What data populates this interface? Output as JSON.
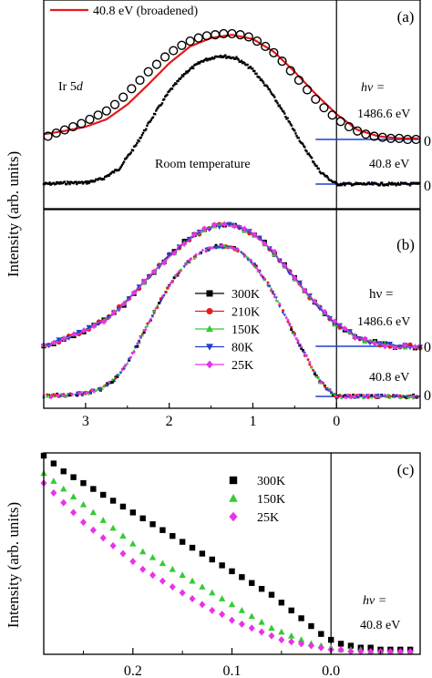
{
  "figure": {
    "ylabel": "Intensity (arb. units)"
  },
  "chart_data": [
    {
      "panel": "(a)",
      "type": "line",
      "x_axis": {
        "label": "",
        "xlim": [
          3.5,
          -1.0
        ],
        "reversed": true
      },
      "legend": {
        "entries": [
          "40.8 eV (broadened)"
        ],
        "placement": "top-left"
      },
      "annotations": {
        "element": "Ir 5d",
        "condition": "Room temperature",
        "photon_label": "hν =",
        "hv_high": "1486.6 eV",
        "hv_low": "40.8 eV",
        "baseline_high_label": "0",
        "baseline_low_label": "0"
      },
      "series": [
        {
          "name": "40.8 eV (broadened)",
          "style": "line",
          "color": "#e41a1c",
          "x": [
            3.5,
            3.25,
            3.0,
            2.75,
            2.5,
            2.25,
            2.0,
            1.75,
            1.5,
            1.25,
            1.0,
            0.75,
            0.5,
            0.25,
            0.0,
            -0.25,
            -0.5,
            -0.75,
            -1.0
          ],
          "y": [
            0.05,
            0.08,
            0.12,
            0.19,
            0.33,
            0.52,
            0.72,
            0.88,
            0.96,
            0.99,
            0.95,
            0.83,
            0.64,
            0.43,
            0.24,
            0.09,
            0.03,
            0.01,
            0.01
          ]
        },
        {
          "name": "1486.6 eV",
          "style": "open-circles",
          "color": "#000000",
          "x": [
            3.45,
            3.35,
            3.25,
            3.15,
            3.05,
            2.95,
            2.85,
            2.75,
            2.65,
            2.55,
            2.45,
            2.35,
            2.25,
            2.15,
            2.05,
            1.95,
            1.85,
            1.75,
            1.65,
            1.55,
            1.45,
            1.35,
            1.25,
            1.15,
            1.05,
            0.95,
            0.85,
            0.75,
            0.65,
            0.55,
            0.45,
            0.35,
            0.25,
            0.15,
            0.05,
            -0.05,
            -0.15,
            -0.25,
            -0.35,
            -0.45,
            -0.55,
            -0.65,
            -0.75,
            -0.85,
            -0.95
          ],
          "y": [
            0.03,
            0.06,
            0.09,
            0.12,
            0.15,
            0.19,
            0.23,
            0.27,
            0.33,
            0.4,
            0.48,
            0.56,
            0.64,
            0.71,
            0.78,
            0.84,
            0.89,
            0.93,
            0.96,
            0.98,
            0.99,
            1.0,
            1.0,
            0.99,
            0.97,
            0.93,
            0.88,
            0.82,
            0.74,
            0.65,
            0.56,
            0.47,
            0.38,
            0.3,
            0.23,
            0.17,
            0.12,
            0.08,
            0.05,
            0.03,
            0.02,
            0.01,
            0.01,
            0.0,
            0.0
          ]
        },
        {
          "name": "40.8 eV",
          "style": "dense-points",
          "color": "#000000",
          "x": [
            3.5,
            3.2,
            3.0,
            2.8,
            2.6,
            2.4,
            2.2,
            2.0,
            1.8,
            1.6,
            1.4,
            1.2,
            1.0,
            0.8,
            0.6,
            0.4,
            0.2,
            0.05,
            0.0
          ],
          "y": [
            0.0,
            0.01,
            0.01,
            0.04,
            0.12,
            0.3,
            0.52,
            0.72,
            0.87,
            0.96,
            1.0,
            0.98,
            0.89,
            0.73,
            0.52,
            0.3,
            0.1,
            0.02,
            0.0
          ]
        }
      ]
    },
    {
      "panel": "(b)",
      "type": "line",
      "x_axis": {
        "label": "",
        "xlim": [
          3.5,
          -1.0
        ],
        "reversed": true,
        "ticks": [
          3,
          2,
          1,
          0
        ],
        "tick_labels": [
          "3",
          "2",
          "1",
          "0"
        ]
      },
      "legend": {
        "entries": [
          "300K",
          "210K",
          "150K",
          "80K",
          "25K"
        ],
        "placement": "center-left"
      },
      "annotations": {
        "photon_label": "hν =",
        "hv_high": "1486.6 eV",
        "hv_low": "40.8 eV",
        "baseline_high_label": "0",
        "baseline_low_label": "0"
      },
      "temperatures": [
        {
          "name": "300K",
          "color": "#000000",
          "marker": "square"
        },
        {
          "name": "210K",
          "color": "#e41a1c",
          "marker": "circle"
        },
        {
          "name": "150K",
          "color": "#33cc33",
          "marker": "triangle-up"
        },
        {
          "name": "80K",
          "color": "#1f3fd4",
          "marker": "triangle-down"
        },
        {
          "name": "25K",
          "color": "#e833e8",
          "marker": "diamond"
        }
      ],
      "profile_high": {
        "x": [
          3.5,
          3.25,
          3.0,
          2.75,
          2.5,
          2.25,
          2.0,
          1.75,
          1.5,
          1.25,
          1.0,
          0.75,
          0.5,
          0.25,
          0.0,
          -0.25,
          -0.5,
          -0.75,
          -1.0
        ],
        "y": [
          0.0,
          0.06,
          0.13,
          0.22,
          0.37,
          0.56,
          0.74,
          0.89,
          0.98,
          1.0,
          0.93,
          0.77,
          0.56,
          0.35,
          0.18,
          0.07,
          0.02,
          0.0,
          0.0
        ]
      },
      "profile_low": {
        "x": [
          3.5,
          3.2,
          3.0,
          2.8,
          2.6,
          2.4,
          2.2,
          2.0,
          1.8,
          1.6,
          1.4,
          1.2,
          1.0,
          0.8,
          0.6,
          0.4,
          0.2,
          0.05,
          0.0
        ],
        "y": [
          0.0,
          0.01,
          0.02,
          0.05,
          0.14,
          0.32,
          0.54,
          0.74,
          0.88,
          0.97,
          1.0,
          0.98,
          0.89,
          0.73,
          0.52,
          0.3,
          0.1,
          0.02,
          0.0
        ]
      }
    },
    {
      "panel": "(c)",
      "type": "scatter",
      "x_axis": {
        "label": "",
        "xlim": [
          0.29,
          -0.09
        ],
        "reversed": true,
        "ticks": [
          0.2,
          0.1,
          0.0
        ],
        "tick_labels": [
          "0.2",
          "0.1",
          "0.0"
        ]
      },
      "legend": {
        "entries": [
          "300K",
          "150K",
          "25K"
        ],
        "placement": "top-right"
      },
      "annotations": {
        "photon_label": "hν =",
        "hv": "40.8 eV"
      },
      "series": [
        {
          "name": "300K",
          "color": "#000000",
          "marker": "square",
          "x": [
            0.29,
            0.28,
            0.27,
            0.26,
            0.25,
            0.24,
            0.23,
            0.22,
            0.21,
            0.2,
            0.19,
            0.18,
            0.17,
            0.16,
            0.15,
            0.14,
            0.13,
            0.12,
            0.11,
            0.1,
            0.09,
            0.08,
            0.07,
            0.06,
            0.05,
            0.04,
            0.03,
            0.02,
            0.01,
            0.0,
            -0.01,
            -0.02,
            -0.03,
            -0.04,
            -0.05,
            -0.06,
            -0.07,
            -0.08
          ],
          "y": [
            1.0,
            0.96,
            0.92,
            0.89,
            0.86,
            0.83,
            0.8,
            0.77,
            0.74,
            0.71,
            0.68,
            0.65,
            0.62,
            0.59,
            0.56,
            0.53,
            0.5,
            0.47,
            0.44,
            0.41,
            0.38,
            0.35,
            0.32,
            0.29,
            0.25,
            0.21,
            0.17,
            0.13,
            0.09,
            0.06,
            0.04,
            0.03,
            0.02,
            0.02,
            0.01,
            0.01,
            0.01,
            0.01
          ]
        },
        {
          "name": "150K",
          "color": "#33cc33",
          "marker": "triangle-up",
          "x": [
            0.29,
            0.28,
            0.27,
            0.26,
            0.25,
            0.24,
            0.23,
            0.22,
            0.21,
            0.2,
            0.19,
            0.18,
            0.17,
            0.16,
            0.15,
            0.14,
            0.13,
            0.12,
            0.11,
            0.1,
            0.09,
            0.08,
            0.07,
            0.06,
            0.05,
            0.04,
            0.03,
            0.02,
            0.01,
            0.0,
            -0.01,
            -0.02,
            -0.03,
            -0.04,
            -0.05,
            -0.06,
            -0.07,
            -0.08
          ],
          "y": [
            0.91,
            0.87,
            0.83,
            0.79,
            0.75,
            0.71,
            0.67,
            0.63,
            0.59,
            0.55,
            0.51,
            0.48,
            0.45,
            0.42,
            0.39,
            0.36,
            0.33,
            0.3,
            0.27,
            0.24,
            0.21,
            0.18,
            0.15,
            0.12,
            0.1,
            0.08,
            0.06,
            0.04,
            0.03,
            0.02,
            0.01,
            0.01,
            0.01,
            0.0,
            0.0,
            0.0,
            0.0,
            0.0
          ]
        },
        {
          "name": "25K",
          "color": "#e833e8",
          "marker": "diamond",
          "x": [
            0.29,
            0.28,
            0.27,
            0.26,
            0.25,
            0.24,
            0.23,
            0.22,
            0.21,
            0.2,
            0.19,
            0.18,
            0.17,
            0.16,
            0.15,
            0.14,
            0.13,
            0.12,
            0.11,
            0.1,
            0.09,
            0.08,
            0.07,
            0.06,
            0.05,
            0.04,
            0.03,
            0.02,
            0.01,
            0.0,
            -0.01,
            -0.02,
            -0.03,
            -0.04,
            -0.05,
            -0.06,
            -0.07,
            -0.08
          ],
          "y": [
            0.86,
            0.81,
            0.76,
            0.71,
            0.66,
            0.62,
            0.58,
            0.54,
            0.5,
            0.46,
            0.42,
            0.39,
            0.36,
            0.33,
            0.3,
            0.27,
            0.24,
            0.21,
            0.19,
            0.16,
            0.14,
            0.12,
            0.1,
            0.08,
            0.06,
            0.05,
            0.04,
            0.03,
            0.02,
            0.01,
            0.01,
            0.0,
            0.0,
            0.0,
            0.0,
            0.0,
            0.0,
            0.0
          ]
        }
      ]
    }
  ]
}
